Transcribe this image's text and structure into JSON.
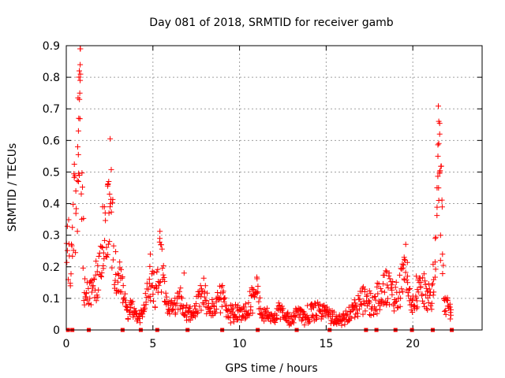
{
  "chart_data": {
    "type": "scatter",
    "title": "Day 081 of 2018, SRMTID for receiver gamb",
    "xlabel": "GPS time / hours",
    "ylabel": "SRMTID / TECUs",
    "xlim": [
      0,
      24
    ],
    "ylim": [
      0,
      0.9
    ],
    "x_ticks": [
      0,
      5,
      10,
      15,
      20
    ],
    "x_tick_labels": [
      "0",
      "5",
      "10",
      "15",
      "20"
    ],
    "y_ticks": [
      0,
      0.1,
      0.2,
      0.3,
      0.4,
      0.5,
      0.6,
      0.7,
      0.8,
      0.9
    ],
    "y_tick_labels": [
      "0",
      "0.1",
      "0.2",
      "0.3",
      "0.4",
      "0.5",
      "0.6",
      "0.7",
      "0.8",
      "0.9"
    ],
    "grid": true,
    "marker": "+",
    "series": [
      {
        "name": "SRMTID",
        "color": "#ff0000",
        "profile": [
          [
            0.0,
            0.25
          ],
          [
            0.15,
            0.24
          ],
          [
            0.3,
            0.26
          ],
          [
            0.45,
            0.38
          ],
          [
            0.6,
            0.42
          ],
          [
            0.7,
            0.6
          ],
          [
            0.8,
            0.79
          ],
          [
            0.9,
            0.5
          ],
          [
            1.0,
            0.12
          ],
          [
            1.2,
            0.1
          ],
          [
            1.4,
            0.12
          ],
          [
            1.6,
            0.15
          ],
          [
            1.8,
            0.17
          ],
          [
            2.0,
            0.22
          ],
          [
            2.2,
            0.3
          ],
          [
            2.35,
            0.35
          ],
          [
            2.5,
            0.42
          ],
          [
            2.65,
            0.3
          ],
          [
            2.8,
            0.18
          ],
          [
            3.0,
            0.17
          ],
          [
            3.2,
            0.14
          ],
          [
            3.4,
            0.07
          ],
          [
            3.6,
            0.06
          ],
          [
            3.8,
            0.07
          ],
          [
            4.0,
            0.05
          ],
          [
            4.3,
            0.05
          ],
          [
            4.6,
            0.09
          ],
          [
            4.8,
            0.18
          ],
          [
            5.0,
            0.12
          ],
          [
            5.2,
            0.14
          ],
          [
            5.4,
            0.22
          ],
          [
            5.6,
            0.16
          ],
          [
            5.8,
            0.08
          ],
          [
            6.0,
            0.06
          ],
          [
            6.3,
            0.07
          ],
          [
            6.6,
            0.1
          ],
          [
            6.8,
            0.06
          ],
          [
            7.0,
            0.05
          ],
          [
            7.3,
            0.06
          ],
          [
            7.6,
            0.08
          ],
          [
            7.8,
            0.12
          ],
          [
            8.0,
            0.1
          ],
          [
            8.3,
            0.06
          ],
          [
            8.6,
            0.09
          ],
          [
            8.9,
            0.11
          ],
          [
            9.2,
            0.07
          ],
          [
            9.5,
            0.05
          ],
          [
            9.8,
            0.06
          ],
          [
            10.1,
            0.05
          ],
          [
            10.4,
            0.06
          ],
          [
            10.7,
            0.1
          ],
          [
            11.0,
            0.13
          ],
          [
            11.2,
            0.05
          ],
          [
            11.6,
            0.05
          ],
          [
            12.0,
            0.04
          ],
          [
            12.3,
            0.06
          ],
          [
            12.6,
            0.04
          ],
          [
            13.0,
            0.03
          ],
          [
            13.3,
            0.06
          ],
          [
            13.6,
            0.04
          ],
          [
            14.0,
            0.05
          ],
          [
            14.3,
            0.06
          ],
          [
            14.7,
            0.06
          ],
          [
            15.0,
            0.06
          ],
          [
            15.3,
            0.04
          ],
          [
            15.6,
            0.03
          ],
          [
            16.0,
            0.04
          ],
          [
            16.4,
            0.05
          ],
          [
            16.8,
            0.08
          ],
          [
            17.2,
            0.1
          ],
          [
            17.6,
            0.08
          ],
          [
            18.0,
            0.1
          ],
          [
            18.3,
            0.14
          ],
          [
            18.6,
            0.12
          ],
          [
            19.0,
            0.1
          ],
          [
            19.3,
            0.14
          ],
          [
            19.5,
            0.21
          ],
          [
            19.7,
            0.15
          ],
          [
            19.9,
            0.08
          ],
          [
            20.2,
            0.1
          ],
          [
            20.5,
            0.15
          ],
          [
            20.8,
            0.1
          ],
          [
            21.0,
            0.12
          ],
          [
            21.2,
            0.15
          ],
          [
            21.35,
            0.35
          ],
          [
            21.5,
            0.58
          ],
          [
            21.65,
            0.3
          ],
          [
            21.8,
            0.08
          ],
          [
            22.0,
            0.07
          ],
          [
            22.2,
            0.06
          ]
        ],
        "peaks": [
          [
            0.55,
            0.44
          ],
          [
            0.7,
            0.63
          ],
          [
            0.72,
            0.67
          ],
          [
            0.76,
            0.73
          ],
          [
            0.78,
            0.75
          ],
          [
            0.8,
            0.79
          ],
          [
            0.82,
            0.81
          ],
          [
            0.8,
            0.84
          ],
          [
            0.66,
            0.58
          ],
          [
            0.75,
            0.49
          ],
          [
            0.7,
            0.47
          ],
          [
            2.4,
            0.46
          ],
          [
            2.45,
            0.47
          ],
          [
            2.2,
            0.39
          ],
          [
            2.1,
            0.39
          ],
          [
            2.5,
            0.43
          ],
          [
            2.55,
            0.4
          ],
          [
            5.4,
            0.29
          ],
          [
            5.45,
            0.27
          ],
          [
            4.85,
            0.24
          ],
          [
            6.8,
            0.18
          ],
          [
            19.5,
            0.23
          ],
          [
            19.55,
            0.22
          ],
          [
            20.2,
            0.17
          ],
          [
            21.55,
            0.62
          ],
          [
            21.5,
            0.59
          ],
          [
            21.45,
            0.55
          ],
          [
            21.55,
            0.5
          ],
          [
            21.4,
            0.45
          ],
          [
            21.5,
            0.41
          ],
          [
            21.6,
            0.3
          ],
          [
            21.3,
            0.29
          ],
          [
            21.6,
            0.22
          ]
        ],
        "seed": 81,
        "sample_step_hours": 0.05,
        "jitter": 0.45
      }
    ],
    "zero_markers": {
      "color": "#ff0000",
      "x": [
        0.1,
        0.35,
        1.3,
        3.25,
        4.3,
        5.25,
        7.0,
        9.0,
        11.05,
        13.3,
        15.2,
        17.3,
        17.9,
        19.0,
        19.95,
        21.15,
        22.25
      ]
    }
  }
}
